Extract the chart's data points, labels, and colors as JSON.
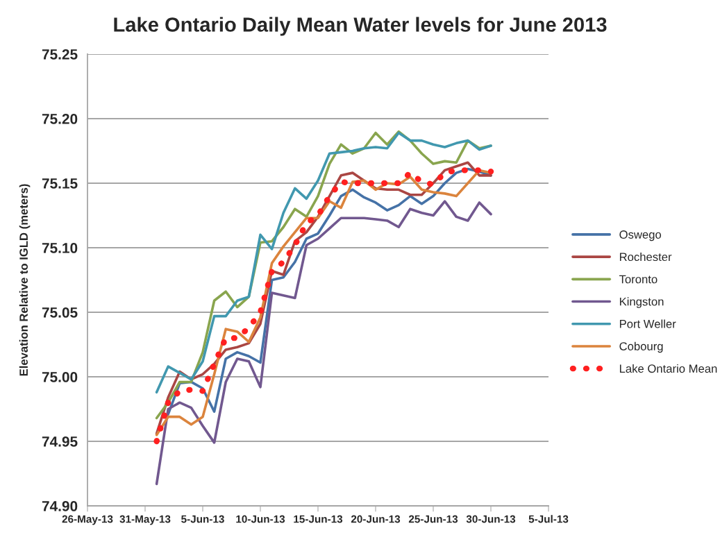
{
  "chart_data": {
    "type": "line",
    "title": "Lake Ontario Daily Mean Water levels for June 2013",
    "ylabel": "Elevation Relative to IGLD (meters)",
    "x": [
      "2013-06-01",
      "2013-06-02",
      "2013-06-03",
      "2013-06-04",
      "2013-06-05",
      "2013-06-06",
      "2013-06-07",
      "2013-06-08",
      "2013-06-09",
      "2013-06-10",
      "2013-06-11",
      "2013-06-12",
      "2013-06-13",
      "2013-06-14",
      "2013-06-15",
      "2013-06-16",
      "2013-06-17",
      "2013-06-18",
      "2013-06-19",
      "2013-06-20",
      "2013-06-21",
      "2013-06-22",
      "2013-06-23",
      "2013-06-24",
      "2013-06-25",
      "2013-06-26",
      "2013-06-27",
      "2013-06-28",
      "2013-06-29",
      "2013-06-30"
    ],
    "series": [
      {
        "name": "Oswego",
        "color": "#4572a7",
        "values": [
          null,
          74.971,
          74.995,
          74.996,
          74.991,
          74.973,
          75.014,
          75.019,
          75.016,
          75.011,
          75.075,
          75.077,
          75.089,
          75.107,
          75.111,
          75.125,
          75.14,
          75.145,
          75.139,
          75.135,
          75.129,
          75.133,
          75.14,
          75.134,
          75.14,
          75.15,
          75.158,
          75.161,
          75.159,
          75.156
        ]
      },
      {
        "name": "Rochester",
        "color": "#aa4643",
        "values": [
          74.956,
          74.984,
          75.004,
          74.998,
          75.002,
          75.01,
          75.021,
          75.023,
          75.026,
          75.041,
          75.082,
          75.079,
          75.105,
          75.112,
          75.124,
          75.14,
          75.156,
          75.158,
          75.152,
          75.146,
          75.145,
          75.145,
          75.141,
          75.141,
          75.15,
          75.16,
          75.163,
          75.166,
          75.156,
          75.156
        ]
      },
      {
        "name": "Toronto",
        "color": "#89a54e",
        "values": [
          74.968,
          74.98,
          74.996,
          74.996,
          75.019,
          75.059,
          75.066,
          75.054,
          75.062,
          75.104,
          75.105,
          75.116,
          75.13,
          75.124,
          75.14,
          75.165,
          75.18,
          75.173,
          75.177,
          75.189,
          75.18,
          75.19,
          75.183,
          75.173,
          75.165,
          75.167,
          75.166,
          75.183,
          75.177,
          75.179
        ]
      },
      {
        "name": "Kingston",
        "color": "#71588f",
        "values": [
          74.917,
          74.975,
          74.98,
          74.976,
          74.962,
          74.949,
          74.996,
          75.014,
          75.012,
          74.992,
          75.065,
          75.063,
          75.061,
          75.102,
          75.107,
          75.115,
          75.123,
          75.123,
          75.123,
          75.122,
          75.121,
          75.116,
          75.13,
          75.127,
          75.125,
          75.136,
          75.124,
          75.121,
          75.135,
          75.126
        ]
      },
      {
        "name": "Port Weller",
        "color": "#4198af",
        "values": [
          74.988,
          75.008,
          75.003,
          74.998,
          75.012,
          75.047,
          75.047,
          75.059,
          75.062,
          75.11,
          75.099,
          75.127,
          75.146,
          75.138,
          75.152,
          75.173,
          75.174,
          75.175,
          75.177,
          75.178,
          75.177,
          75.189,
          75.183,
          75.183,
          75.18,
          75.178,
          75.181,
          75.183,
          75.176,
          75.179
        ]
      },
      {
        "name": "Cobourg",
        "color": "#db843d",
        "values": [
          74.955,
          74.969,
          74.969,
          74.963,
          74.969,
          75.002,
          75.037,
          75.035,
          75.027,
          75.046,
          75.088,
          75.101,
          75.112,
          75.123,
          75.123,
          75.136,
          75.131,
          75.151,
          75.152,
          75.145,
          75.15,
          75.149,
          75.155,
          75.145,
          75.143,
          75.142,
          75.14,
          75.15,
          75.16,
          75.158
        ]
      },
      {
        "name": "Lake Ontario Mean",
        "color": "#ff2020",
        "line_style": "dotted",
        "values": [
          74.95,
          74.98,
          74.989,
          74.99,
          74.989,
          75.01,
          75.03,
          75.03,
          75.038,
          75.05,
          75.082,
          75.089,
          75.102,
          75.119,
          75.125,
          75.14,
          75.151,
          75.15,
          75.15,
          75.15,
          75.15,
          75.15,
          75.158,
          75.151,
          75.149,
          75.158,
          75.16,
          75.16,
          75.16,
          75.159
        ]
      }
    ],
    "xlim": [
      "2013-05-26",
      "2013-07-05"
    ],
    "xticks": [
      {
        "value": "2013-05-26",
        "label": "26-May-13"
      },
      {
        "value": "2013-05-31",
        "label": "31-May-13"
      },
      {
        "value": "2013-06-05",
        "label": "5-Jun-13"
      },
      {
        "value": "2013-06-10",
        "label": "10-Jun-13"
      },
      {
        "value": "2013-06-15",
        "label": "15-Jun-13"
      },
      {
        "value": "2013-06-20",
        "label": "20-Jun-13"
      },
      {
        "value": "2013-06-25",
        "label": "25-Jun-13"
      },
      {
        "value": "2013-06-30",
        "label": "30-Jun-13"
      },
      {
        "value": "2013-07-05",
        "label": "5-Jul-13"
      }
    ],
    "ylim": [
      74.9,
      75.25
    ],
    "yticks": [
      {
        "value": 74.9,
        "label": "74.90"
      },
      {
        "value": 74.95,
        "label": "74.95"
      },
      {
        "value": 75.0,
        "label": "75.00"
      },
      {
        "value": 75.05,
        "label": "75.05"
      },
      {
        "value": 75.1,
        "label": "75.10"
      },
      {
        "value": 75.15,
        "label": "75.15"
      },
      {
        "value": 75.2,
        "label": "75.20"
      },
      {
        "value": 75.25,
        "label": "75.25"
      }
    ],
    "grid": "y",
    "legend": "right",
    "line_style": "solid",
    "marker": "none"
  }
}
